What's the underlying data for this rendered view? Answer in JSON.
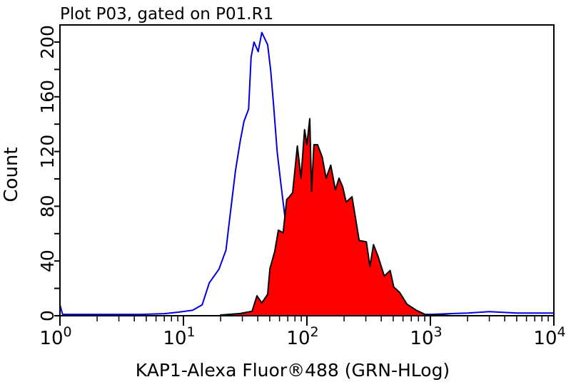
{
  "chart_data": {
    "type": "histogram",
    "title": "Plot P03, gated on P01.R1",
    "xlabel": "KAP1-Alexa Fluor®488 (GRN-HLog)",
    "ylabel": "Count",
    "x_scale": "log",
    "xlim": [
      1,
      10000
    ],
    "ylim": [
      0,
      200
    ],
    "x_ticks": [
      {
        "base": "10",
        "exp": "0",
        "value": 1
      },
      {
        "base": "10",
        "exp": "1",
        "value": 10
      },
      {
        "base": "10",
        "exp": "2",
        "value": 100
      },
      {
        "base": "10",
        "exp": "3",
        "value": 1000
      },
      {
        "base": "10",
        "exp": "4",
        "value": 10000
      }
    ],
    "y_ticks": [
      "0",
      "40",
      "80",
      "120",
      "160",
      "200"
    ],
    "grid": false,
    "series": [
      {
        "style": "outline",
        "color": "#0000dd",
        "points": [
          [
            1,
            8
          ],
          [
            1.05,
            1
          ],
          [
            2,
            1
          ],
          [
            4.5,
            1
          ],
          [
            7,
            1.5
          ],
          [
            9.1,
            2.6
          ],
          [
            11.9,
            4
          ],
          [
            14.2,
            8
          ],
          [
            16.2,
            24
          ],
          [
            19.4,
            34
          ],
          [
            22.1,
            48
          ],
          [
            23.7,
            71
          ],
          [
            26.4,
            106
          ],
          [
            28.9,
            128
          ],
          [
            30.9,
            142
          ],
          [
            33.7,
            151
          ],
          [
            35.3,
            189
          ],
          [
            37.3,
            200
          ],
          [
            40.3,
            193
          ],
          [
            43.1,
            207
          ],
          [
            48.1,
            198
          ],
          [
            50.9,
            179
          ],
          [
            53.7,
            154
          ],
          [
            57.4,
            120
          ],
          [
            61.4,
            97
          ],
          [
            65.6,
            76
          ],
          [
            73.3,
            38
          ],
          [
            83.7,
            12
          ],
          [
            105,
            2.6
          ],
          [
            200,
            1
          ],
          [
            1000,
            1
          ],
          [
            2000,
            2
          ],
          [
            3000,
            3
          ],
          [
            5000,
            2
          ],
          [
            10000,
            2
          ]
        ]
      },
      {
        "style": "filled",
        "color": "#ff0000",
        "outline": "#000000",
        "points": [
          [
            20,
            0.5
          ],
          [
            28.9,
            1.6
          ],
          [
            36,
            3.3
          ],
          [
            39.4,
            14.6
          ],
          [
            43.1,
            9.4
          ],
          [
            48.1,
            15.6
          ],
          [
            50.2,
            34.5
          ],
          [
            54.9,
            47
          ],
          [
            58.7,
            62.5
          ],
          [
            64.2,
            60.6
          ],
          [
            68.6,
            85
          ],
          [
            71.7,
            86.6
          ],
          [
            76.6,
            90
          ],
          [
            83.7,
            124
          ],
          [
            89.5,
            100.5
          ],
          [
            95.7,
            136
          ],
          [
            100,
            125
          ],
          [
            105.5,
            144
          ],
          [
            109,
            91
          ],
          [
            114,
            125
          ],
          [
            122,
            125
          ],
          [
            133,
            116
          ],
          [
            143,
            100.5
          ],
          [
            156,
            110
          ],
          [
            170,
            92
          ],
          [
            182,
            100.5
          ],
          [
            195,
            94
          ],
          [
            208,
            83
          ],
          [
            232,
            87
          ],
          [
            265,
            55
          ],
          [
            303,
            54
          ],
          [
            324,
            36
          ],
          [
            346,
            52
          ],
          [
            378,
            43
          ],
          [
            423,
            29
          ],
          [
            472,
            33
          ],
          [
            505,
            21
          ],
          [
            564,
            17
          ],
          [
            645,
            8.5
          ],
          [
            769,
            4
          ],
          [
            918,
            0.7
          ],
          [
            1200,
            0.5
          ],
          [
            1500,
            0
          ]
        ]
      }
    ]
  }
}
